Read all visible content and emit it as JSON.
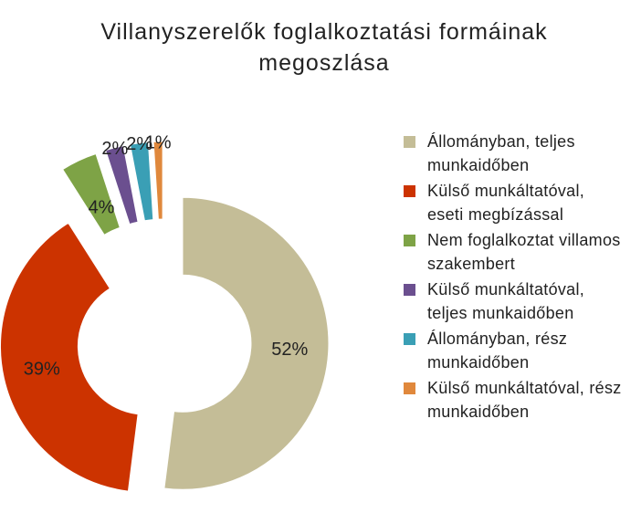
{
  "chart_data": {
    "type": "pie",
    "title": "Villanyszerelők foglalkoztatási formáinak megoszlása",
    "categories": [
      "Állományban, teljes munkaidőben",
      "Külső munkáltatóval, eseti megbízással",
      "Nem foglalkoztat villamos szakembert",
      "Külső munkáltatóval, teljes munkaidőben",
      "Állományban, rész munkaidőben",
      "Külső munkáltatóval, rész munkaidőben"
    ],
    "values": [
      52,
      39,
      4,
      2,
      2,
      1
    ],
    "value_labels": [
      "52%",
      "39%",
      "4%",
      "2%",
      "2%",
      "1%"
    ],
    "colors": [
      "#c4bd97",
      "#cc3300",
      "#7ea346",
      "#6b4f8f",
      "#3a9fb5",
      "#e0883c"
    ]
  }
}
